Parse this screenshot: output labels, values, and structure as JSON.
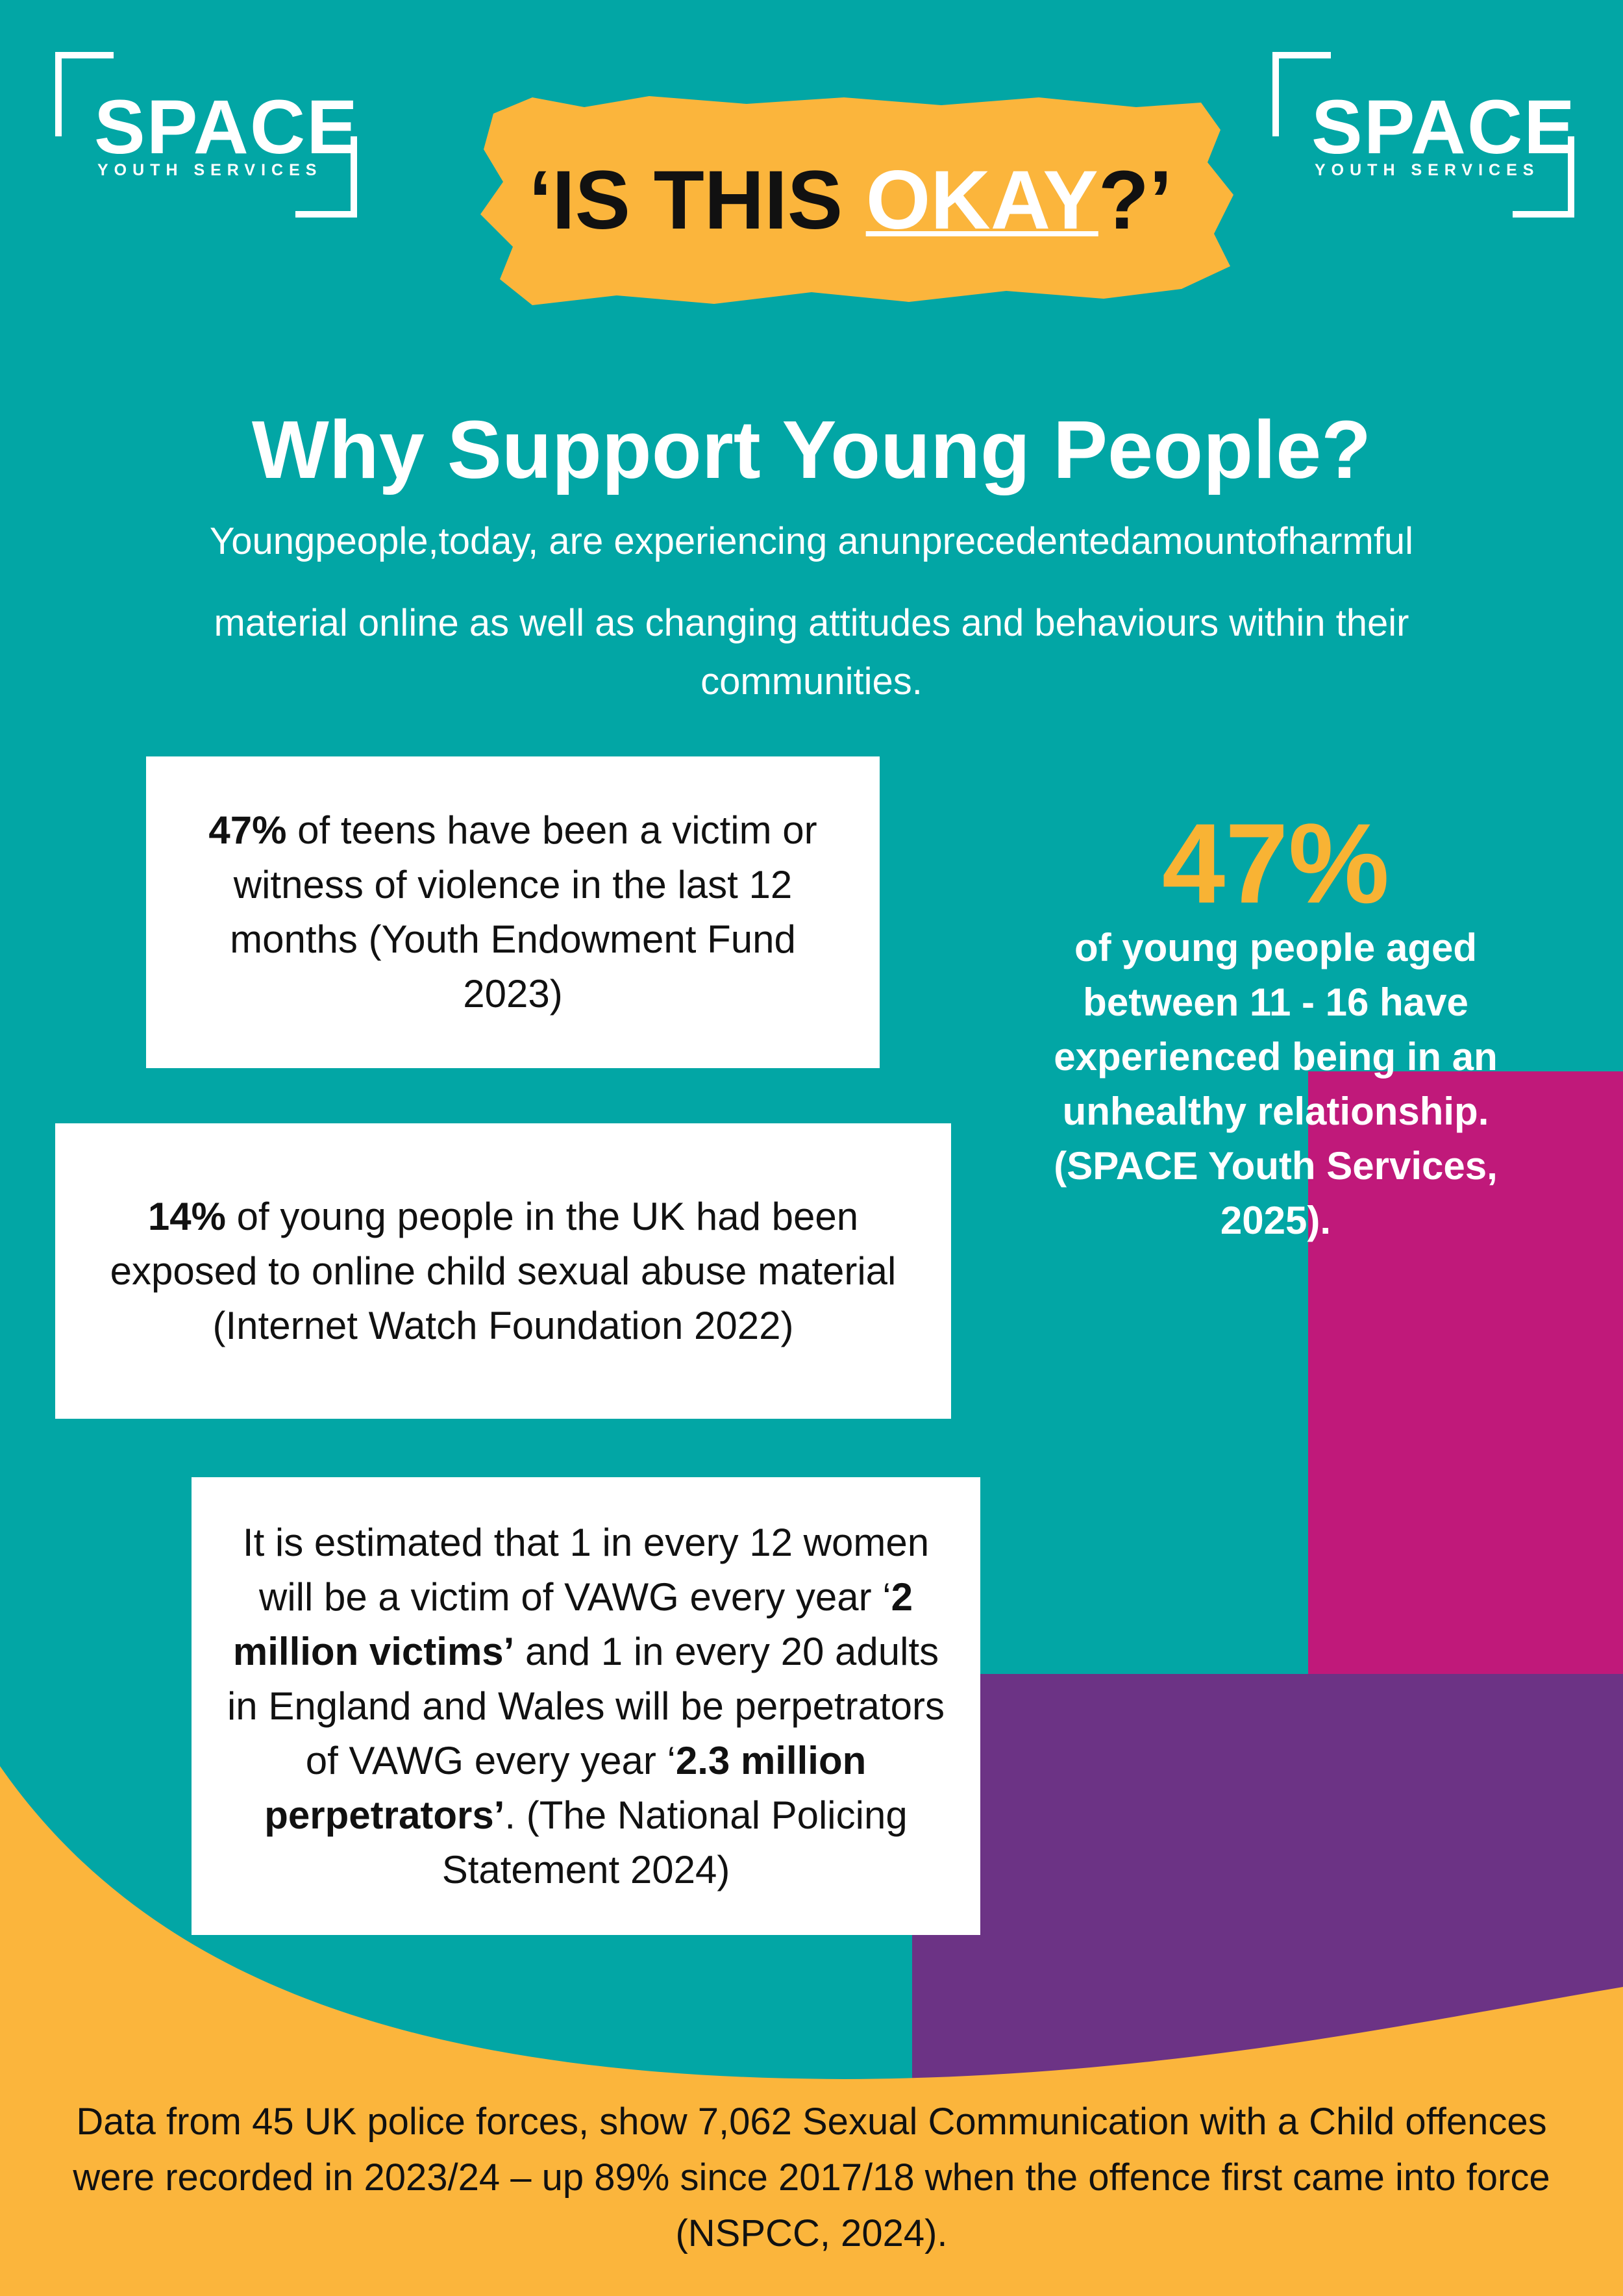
{
  "logos": [
    {
      "name": "SPACE",
      "tagline": "YOUTH SERVICES"
    },
    {
      "name": "SPACE",
      "tagline": "YOUTH SERVICES"
    }
  ],
  "banner": {
    "before": "‘IS THIS ",
    "highlight": "OKAY",
    "after": "?’"
  },
  "heading": "Why Support Young People?",
  "intro": [
    "Youngpeople,today, are experiencing anunprecedentedamountofharmful",
    "material online as well as changing attitudes and behaviours within their communities."
  ],
  "facts": [
    {
      "parts": [
        {
          "text": "47%",
          "bold": true
        },
        {
          "text": " of teens have been a victim or witness of violence in the last 12 months (Youth Endowment Fund 2023)",
          "bold": false
        }
      ]
    },
    {
      "parts": [
        {
          "text": "14%",
          "bold": true
        },
        {
          "text": " of young people in the UK had been exposed to online child sexual abuse material (Internet Watch Foundation 2022)",
          "bold": false
        }
      ]
    },
    {
      "parts": [
        {
          "text": "It is estimated that 1 in every 12 women will be a victim of VAWG every year ‘",
          "bold": false
        },
        {
          "text": "2 million victims’",
          "bold": true
        },
        {
          "text": " and 1 in every 20 adults in England and Wales will be perpetrators of VAWG every year ‘",
          "bold": false
        },
        {
          "text": "2.3 million perpetrators’",
          "bold": true
        },
        {
          "text": ". (The National Policing Statement 2024)",
          "bold": false
        }
      ]
    }
  ],
  "stat": {
    "figure": "47%",
    "text": "of young people aged between 11 - 16 have experienced being in an unhealthy relationship. (SPACE Youth Services, 2025)."
  },
  "footer": "Data from 45 UK police forces, show 7,062 Sexual Communication with a Child offences were recorded in 2023/24 – up 89% since 2017/18 when the offence first came into force (NSPCC, 2024)."
}
